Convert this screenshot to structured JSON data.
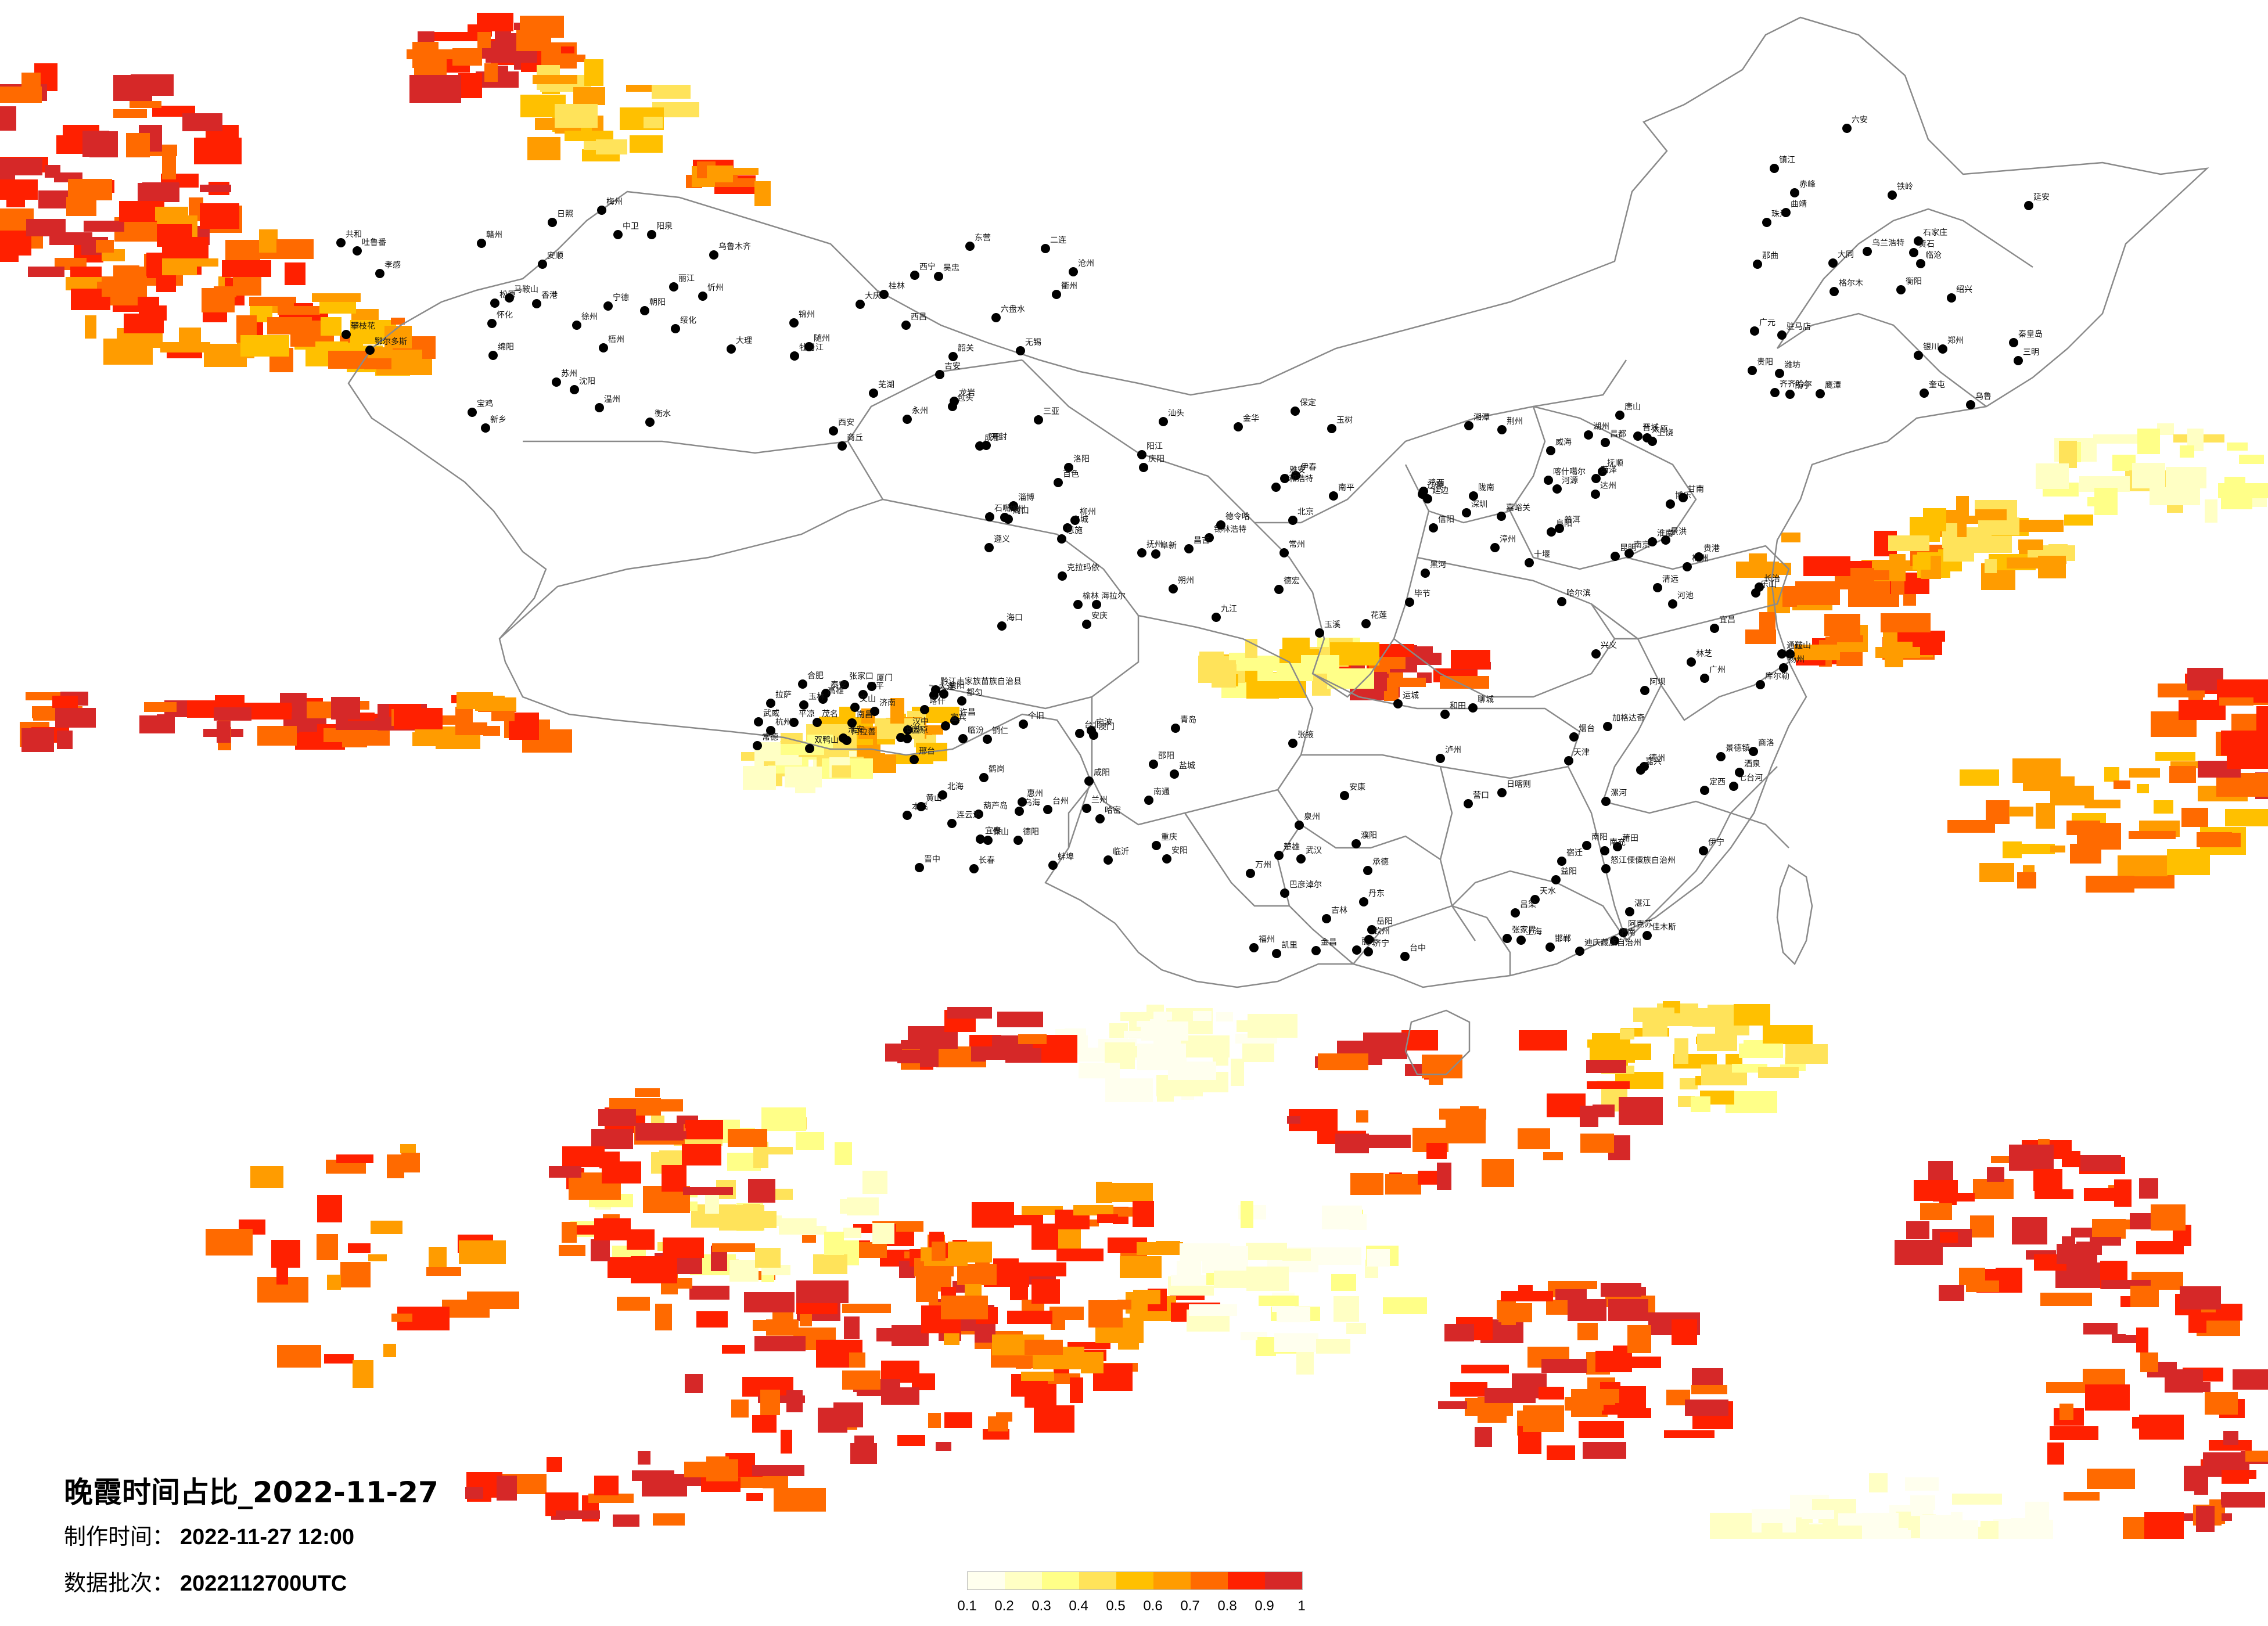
{
  "title": "晚霞时间占比_2022-11-27",
  "made_time": {
    "label": "制作时间：",
    "value": "2022-11-27 12:00"
  },
  "data_batch": {
    "label": "数据批次：",
    "value": "2022112700UTC"
  },
  "legend": {
    "colors": [
      "#ffffee",
      "#ffffc4",
      "#ffff88",
      "#ffe35a",
      "#ffc000",
      "#ff9c00",
      "#ff6a00",
      "#ff2000",
      "#d62828"
    ],
    "ticks": [
      "0.1",
      "0.2",
      "0.3",
      "0.4",
      "0.5",
      "0.6",
      "0.7",
      "0.8",
      "0.9",
      "1"
    ]
  },
  "city_labels": [
    "海拉尔",
    "加格达奇",
    "黑河",
    "齐齐哈尔",
    "伊春",
    "大庆",
    "绥化",
    "鹤岗",
    "佳木斯",
    "双鸭山",
    "哈尔滨",
    "七台河",
    "鸡西",
    "乌兰浩特",
    "白城",
    "牡丹江",
    "松原",
    "长春",
    "吉林",
    "四平",
    "辽源",
    "通辽",
    "延边",
    "赤峰",
    "锡林浩特",
    "二连",
    "沈阳",
    "本溪",
    "丹东",
    "大连",
    "营口",
    "鞍山",
    "抚顺",
    "铁岭",
    "阜新",
    "锦州",
    "朝阳",
    "葫芦岛",
    "承德",
    "张家口",
    "北京",
    "天津",
    "唐山",
    "秦皇岛",
    "呼和浩特",
    "包头",
    "鄂尔多斯",
    "乌海",
    "巴彦淖尔",
    "阿拉善",
    "克拉玛依",
    "伊宁",
    "博乐",
    "奎屯",
    "昌吉",
    "乌鲁木齐",
    "吐鲁番",
    "哈密",
    "阿克苏",
    "喀什",
    "和田",
    "库尔勒",
    "喀什噶尔",
    "格尔木",
    "德令哈",
    "西宁",
    "共和",
    "兰州",
    "金昌",
    "武威",
    "张掖",
    "酒泉",
    "嘉峪关",
    "银川",
    "石嘴山",
    "吴忠",
    "中卫",
    "固原",
    "天水",
    "平凉",
    "庆阳",
    "定西",
    "陇南",
    "延安",
    "榆林",
    "西安",
    "宝鸡",
    "咸阳",
    "渭南",
    "汉中",
    "安康",
    "商洛",
    "太原",
    "大同",
    "朔州",
    "忻州",
    "阳泉",
    "晋中",
    "吕梁",
    "临汾",
    "运城",
    "长治",
    "晋城",
    "石家庄",
    "保定",
    "沧州",
    "衡水",
    "邢台",
    "邯郸",
    "济南",
    "青岛",
    "烟台",
    "威海",
    "潍坊",
    "淄博",
    "东营",
    "日照",
    "临沂",
    "济宁",
    "泰安",
    "聊城",
    "德州",
    "菏泽",
    "郑州",
    "洛阳",
    "开封",
    "新乡",
    "安阳",
    "濮阳",
    "许昌",
    "漯河",
    "南阳",
    "信阳",
    "驻马店",
    "周口",
    "商丘",
    "徐州",
    "连云港",
    "宿迁",
    "淮安",
    "盐城",
    "扬州",
    "南京",
    "镇江",
    "常州",
    "无锡",
    "苏州",
    "南通",
    "上海",
    "杭州",
    "宁波",
    "嘉兴",
    "湖州",
    "绍兴",
    "金华",
    "衢州",
    "温州",
    "台州",
    "丽水",
    "合肥",
    "蚌埠",
    "淮南",
    "阜阳",
    "六安",
    "安庆",
    "芜湖",
    "马鞍山",
    "黄山",
    "武汉",
    "襄阳",
    "十堰",
    "宜昌",
    "荆州",
    "黄石",
    "恩施",
    "随州",
    "孝感",
    "长沙",
    "岳阳",
    "常德",
    "益阳",
    "株洲",
    "湘潭",
    "衡阳",
    "郴州",
    "永州",
    "怀化",
    "邵阳",
    "张家界",
    "南昌",
    "九江",
    "景德镇",
    "上饶",
    "鹰潭",
    "抚州",
    "吉安",
    "赣州",
    "宜春",
    "福州",
    "厦门",
    "泉州",
    "莆田",
    "漳州",
    "三明",
    "南平",
    "龙岩",
    "宁德",
    "台北",
    "台中",
    "高雄",
    "花莲",
    "广州",
    "深圳",
    "珠海",
    "汕头",
    "韶关",
    "梅州",
    "惠州",
    "湛江",
    "茂名",
    "阳江",
    "清远",
    "河源",
    "南宁",
    "柳州",
    "桂林",
    "梧州",
    "北海",
    "钦州",
    "玉林",
    "百色",
    "河池",
    "贵港",
    "贵阳",
    "遵义",
    "六盘水",
    "安顺",
    "都匀",
    "凯里",
    "铜仁",
    "毕节",
    "兴义",
    "昆明",
    "曲靖",
    "玉溪",
    "大理",
    "丽江",
    "保山",
    "楚雄",
    "文山",
    "个旧",
    "景洪",
    "普洱",
    "临沧",
    "德宏",
    "成都",
    "绵阳",
    "德阳",
    "南充",
    "宜宾",
    "泸州",
    "乐山",
    "达州",
    "广元",
    "雅安",
    "西昌",
    "攀枝花",
    "重庆",
    "万州",
    "拉萨",
    "日喀则",
    "林芝",
    "昌都",
    "那曲",
    "海口",
    "三亚",
    "香港",
    "澳门",
    "迪庆藏族自治州",
    "黔江土家族苗族自治县",
    "怒江傈僳族自治州",
    "阿坝",
    "甘南",
    "乌鲁",
    "玉树"
  ]
}
